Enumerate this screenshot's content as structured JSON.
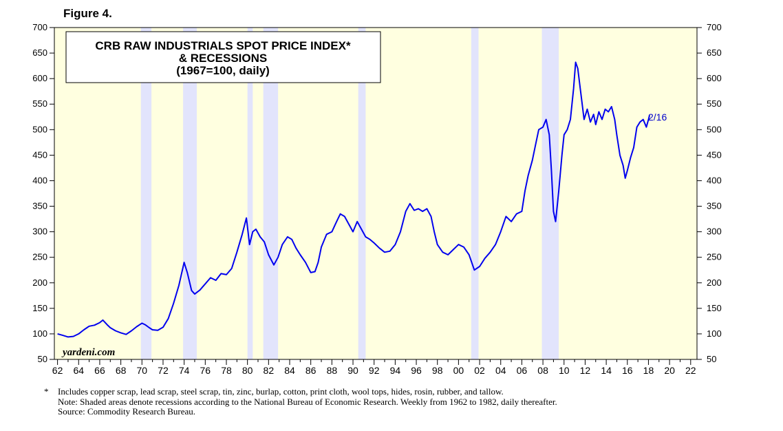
{
  "figure_label": "Figure 4.",
  "chart_data": {
    "type": "line",
    "title_lines": [
      "CRB RAW INDUSTRIALS SPOT PRICE INDEX*",
      "& RECESSIONS",
      "(1967=100, daily)"
    ],
    "ylim": [
      50,
      700
    ],
    "y_ticks": [
      50,
      100,
      150,
      200,
      250,
      300,
      350,
      400,
      450,
      500,
      550,
      600,
      650,
      700
    ],
    "xlim": [
      1961.7,
      2022.6
    ],
    "x_ticks": [
      1962,
      1964,
      1966,
      1968,
      1970,
      1972,
      1974,
      1976,
      1978,
      1980,
      1982,
      1984,
      1986,
      1988,
      1990,
      1992,
      1994,
      1996,
      1998,
      2000,
      2002,
      2004,
      2006,
      2008,
      2010,
      2012,
      2014,
      2016,
      2018,
      2020,
      2022
    ],
    "x_tick_labels": [
      "62",
      "64",
      "66",
      "68",
      "70",
      "72",
      "74",
      "76",
      "78",
      "80",
      "82",
      "84",
      "86",
      "88",
      "90",
      "92",
      "94",
      "96",
      "98",
      "00",
      "02",
      "04",
      "06",
      "08",
      "10",
      "12",
      "14",
      "16",
      "18",
      "20",
      "22"
    ],
    "recessions": [
      [
        1969.9,
        1970.9
      ],
      [
        1973.9,
        1975.2
      ],
      [
        1980.0,
        1980.5
      ],
      [
        1981.5,
        1982.9
      ],
      [
        1990.5,
        1991.2
      ],
      [
        2001.2,
        2001.9
      ],
      [
        2007.9,
        2009.5
      ]
    ],
    "series": [
      {
        "name": "CRB Raw Industrials Spot Price Index",
        "x": [
          1962.0,
          1962.5,
          1963.0,
          1963.5,
          1964.0,
          1964.5,
          1965.0,
          1965.5,
          1966.0,
          1966.3,
          1966.7,
          1967.0,
          1967.5,
          1968.0,
          1968.5,
          1969.0,
          1969.5,
          1970.0,
          1970.3,
          1970.7,
          1971.0,
          1971.5,
          1972.0,
          1972.5,
          1973.0,
          1973.5,
          1974.0,
          1974.3,
          1974.7,
          1975.0,
          1975.5,
          1976.0,
          1976.5,
          1977.0,
          1977.5,
          1978.0,
          1978.5,
          1979.0,
          1979.5,
          1979.9,
          1980.2,
          1980.5,
          1980.8,
          1981.2,
          1981.6,
          1982.0,
          1982.5,
          1982.9,
          1983.3,
          1983.8,
          1984.2,
          1984.6,
          1985.0,
          1985.5,
          1986.0,
          1986.4,
          1986.7,
          1987.0,
          1987.5,
          1988.0,
          1988.4,
          1988.8,
          1989.2,
          1989.6,
          1990.0,
          1990.4,
          1990.8,
          1991.2,
          1991.6,
          1992.0,
          1992.5,
          1993.0,
          1993.5,
          1994.0,
          1994.5,
          1995.0,
          1995.4,
          1995.8,
          1996.2,
          1996.6,
          1997.0,
          1997.4,
          1997.7,
          1998.0,
          1998.5,
          1999.0,
          1999.5,
          2000.0,
          2000.5,
          2001.0,
          2001.5,
          2002.0,
          2002.5,
          2003.0,
          2003.5,
          2004.0,
          2004.5,
          2005.0,
          2005.5,
          2006.0,
          2006.3,
          2006.6,
          2007.0,
          2007.3,
          2007.6,
          2008.0,
          2008.3,
          2008.6,
          2008.8,
          2009.0,
          2009.2,
          2009.5,
          2009.8,
          2010.0,
          2010.3,
          2010.6,
          2010.9,
          2011.1,
          2011.3,
          2011.6,
          2011.9,
          2012.2,
          2012.5,
          2012.8,
          2013.0,
          2013.3,
          2013.6,
          2013.9,
          2014.2,
          2014.5,
          2014.8,
          2015.0,
          2015.3,
          2015.6,
          2015.8,
          2016.0,
          2016.3,
          2016.6,
          2016.9,
          2017.2,
          2017.5,
          2017.8,
          2018.0,
          2018.1
        ],
        "values": [
          100,
          97,
          94,
          95,
          100,
          108,
          115,
          117,
          122,
          127,
          118,
          112,
          106,
          102,
          99,
          106,
          114,
          121,
          118,
          112,
          108,
          107,
          113,
          130,
          160,
          195,
          240,
          220,
          185,
          178,
          186,
          198,
          210,
          205,
          218,
          216,
          228,
          260,
          295,
          327,
          275,
          300,
          305,
          290,
          280,
          255,
          235,
          250,
          275,
          290,
          285,
          268,
          255,
          240,
          220,
          222,
          240,
          270,
          295,
          300,
          318,
          335,
          330,
          315,
          300,
          320,
          305,
          290,
          285,
          278,
          268,
          260,
          262,
          275,
          300,
          340,
          355,
          342,
          345,
          340,
          345,
          330,
          300,
          275,
          260,
          255,
          265,
          275,
          270,
          255,
          225,
          232,
          248,
          260,
          275,
          300,
          330,
          320,
          335,
          340,
          380,
          410,
          440,
          470,
          500,
          505,
          520,
          490,
          420,
          340,
          320,
          380,
          450,
          490,
          500,
          520,
          580,
          632,
          620,
          570,
          520,
          540,
          515,
          530,
          510,
          535,
          520,
          540,
          535,
          545,
          520,
          490,
          450,
          430,
          405,
          420,
          445,
          465,
          505,
          515,
          520,
          505,
          520,
          528
        ]
      }
    ],
    "end_label": "2/16",
    "watermark": "yardeni.com"
  },
  "notes": {
    "star": "*",
    "line1": "Includes copper scrap, lead scrap, steel scrap, tin, zinc, burlap, cotton, print cloth, wool tops, hides, rosin, rubber, and tallow.",
    "line2": "Note: Shaded areas denote recessions according to the National Bureau of Economic Research. Weekly from 1962 to 1982, daily thereafter.",
    "line3": "Source: Commodity Research Bureau."
  },
  "colors": {
    "plot_bg": "#ffffe0",
    "recession": "#e2e4fc",
    "line": "#0000ee",
    "end_label": "#0000cc"
  }
}
